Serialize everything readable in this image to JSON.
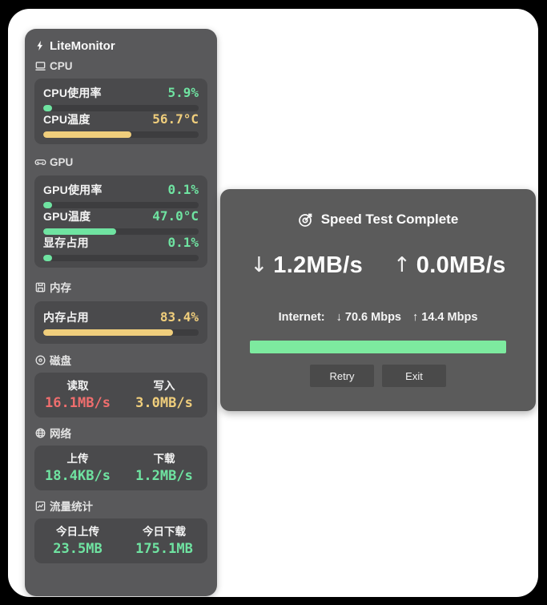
{
  "colors": {
    "accent_green": "#6fe3a1",
    "accent_yellow": "#f0ce7c",
    "accent_red": "#ef6e6e",
    "dialog_progress_green": "#7dea9f",
    "panel_background": "#59595b",
    "card_background": "#4a4a4c",
    "track_background": "#3d3d3f"
  },
  "monitor": {
    "title": "LiteMonitor",
    "title_icon": "lightning-icon",
    "cpu": {
      "section_label": "CPU",
      "section_icon": "computer-icon",
      "rows": [
        {
          "label": "CPU使用率",
          "value": "5.9%",
          "percent": 5.9,
          "color": "green"
        },
        {
          "label": "CPU温度",
          "value": "56.7°C",
          "percent": 56.7,
          "color": "yellow"
        }
      ]
    },
    "gpu": {
      "section_label": "GPU",
      "section_icon": "gamepad-icon",
      "rows": [
        {
          "label": "GPU使用率",
          "value": "0.1%",
          "percent": 0.1,
          "color": "green"
        },
        {
          "label": "GPU温度",
          "value": "47.0°C",
          "percent": 47.0,
          "color": "green"
        },
        {
          "label": "显存占用",
          "value": "0.1%",
          "percent": 0.1,
          "color": "green"
        }
      ]
    },
    "memory": {
      "section_label": "内存",
      "section_icon": "floppy-icon",
      "rows": [
        {
          "label": "内存占用",
          "value": "83.4%",
          "percent": 83.4,
          "color": "yellow"
        }
      ]
    },
    "disk": {
      "section_label": "磁盘",
      "section_icon": "disc-icon",
      "cols": [
        {
          "label": "读取",
          "value": "16.1MB/s",
          "color": "red"
        },
        {
          "label": "写入",
          "value": "3.0MB/s",
          "color": "yellow"
        }
      ]
    },
    "network": {
      "section_label": "网络",
      "section_icon": "globe-icon",
      "cols": [
        {
          "label": "上传",
          "value": "18.4KB/s",
          "color": "green"
        },
        {
          "label": "下载",
          "value": "1.2MB/s",
          "color": "green"
        }
      ]
    },
    "traffic": {
      "section_label": "流量统计",
      "section_icon": "chart-icon",
      "cols": [
        {
          "label": "今日上传",
          "value": "23.5MB",
          "color": "green"
        },
        {
          "label": "今日下载",
          "value": "175.1MB",
          "color": "green"
        }
      ]
    }
  },
  "dialog": {
    "title": "Speed Test Complete",
    "title_icon": "target-icon",
    "down_arrow": "↓",
    "down_value": "1.2MB/s",
    "up_arrow": "↑",
    "up_value": "0.0MB/s",
    "internet_prefix": "Internet:",
    "internet_down": "↓ 70.6 Mbps",
    "internet_up": "↑ 14.4 Mbps",
    "progress_percent": 100,
    "retry_label": "Retry",
    "exit_label": "Exit"
  }
}
